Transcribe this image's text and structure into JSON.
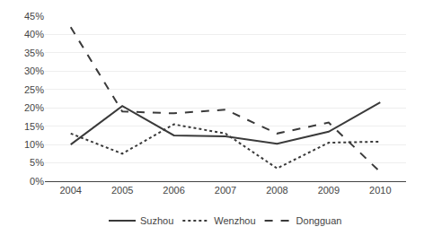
{
  "chart_data": {
    "type": "line",
    "x": [
      2004,
      2005,
      2006,
      2007,
      2008,
      2009,
      2010
    ],
    "series": [
      {
        "name": "Suzhou",
        "color": "#3a3a3a",
        "line_style": "solid",
        "values": [
          0.1,
          0.205,
          0.125,
          0.122,
          0.102,
          0.135,
          0.215
        ]
      },
      {
        "name": "Wenzhou",
        "color": "#3a3a3a",
        "line_style": "dotted",
        "values": [
          0.13,
          0.075,
          0.155,
          0.13,
          0.035,
          0.105,
          0.108
        ]
      },
      {
        "name": "Dongguan",
        "color": "#3a3a3a",
        "line_style": "dashed",
        "values": [
          0.42,
          0.19,
          0.185,
          0.195,
          0.13,
          0.16,
          0.025
        ]
      }
    ],
    "xlim": [
      2003.5,
      2010.5
    ],
    "xticks": [
      2004,
      2005,
      2006,
      2007,
      2008,
      2009,
      2010
    ],
    "ylim": [
      0,
      0.45
    ],
    "yticks": [
      {
        "value": 0,
        "label": "0%"
      },
      {
        "value": 0.05,
        "label": "5%"
      },
      {
        "value": 0.1,
        "label": "10%"
      },
      {
        "value": 0.15,
        "label": "15%"
      },
      {
        "value": 0.2,
        "label": "20%"
      },
      {
        "value": 0.25,
        "label": "25%"
      },
      {
        "value": 0.3,
        "label": "30%"
      },
      {
        "value": 0.35,
        "label": "35%"
      },
      {
        "value": 0.4,
        "label": "40%"
      },
      {
        "value": 0.45,
        "label": "45%"
      }
    ],
    "grid": true,
    "legend": "bottom"
  }
}
